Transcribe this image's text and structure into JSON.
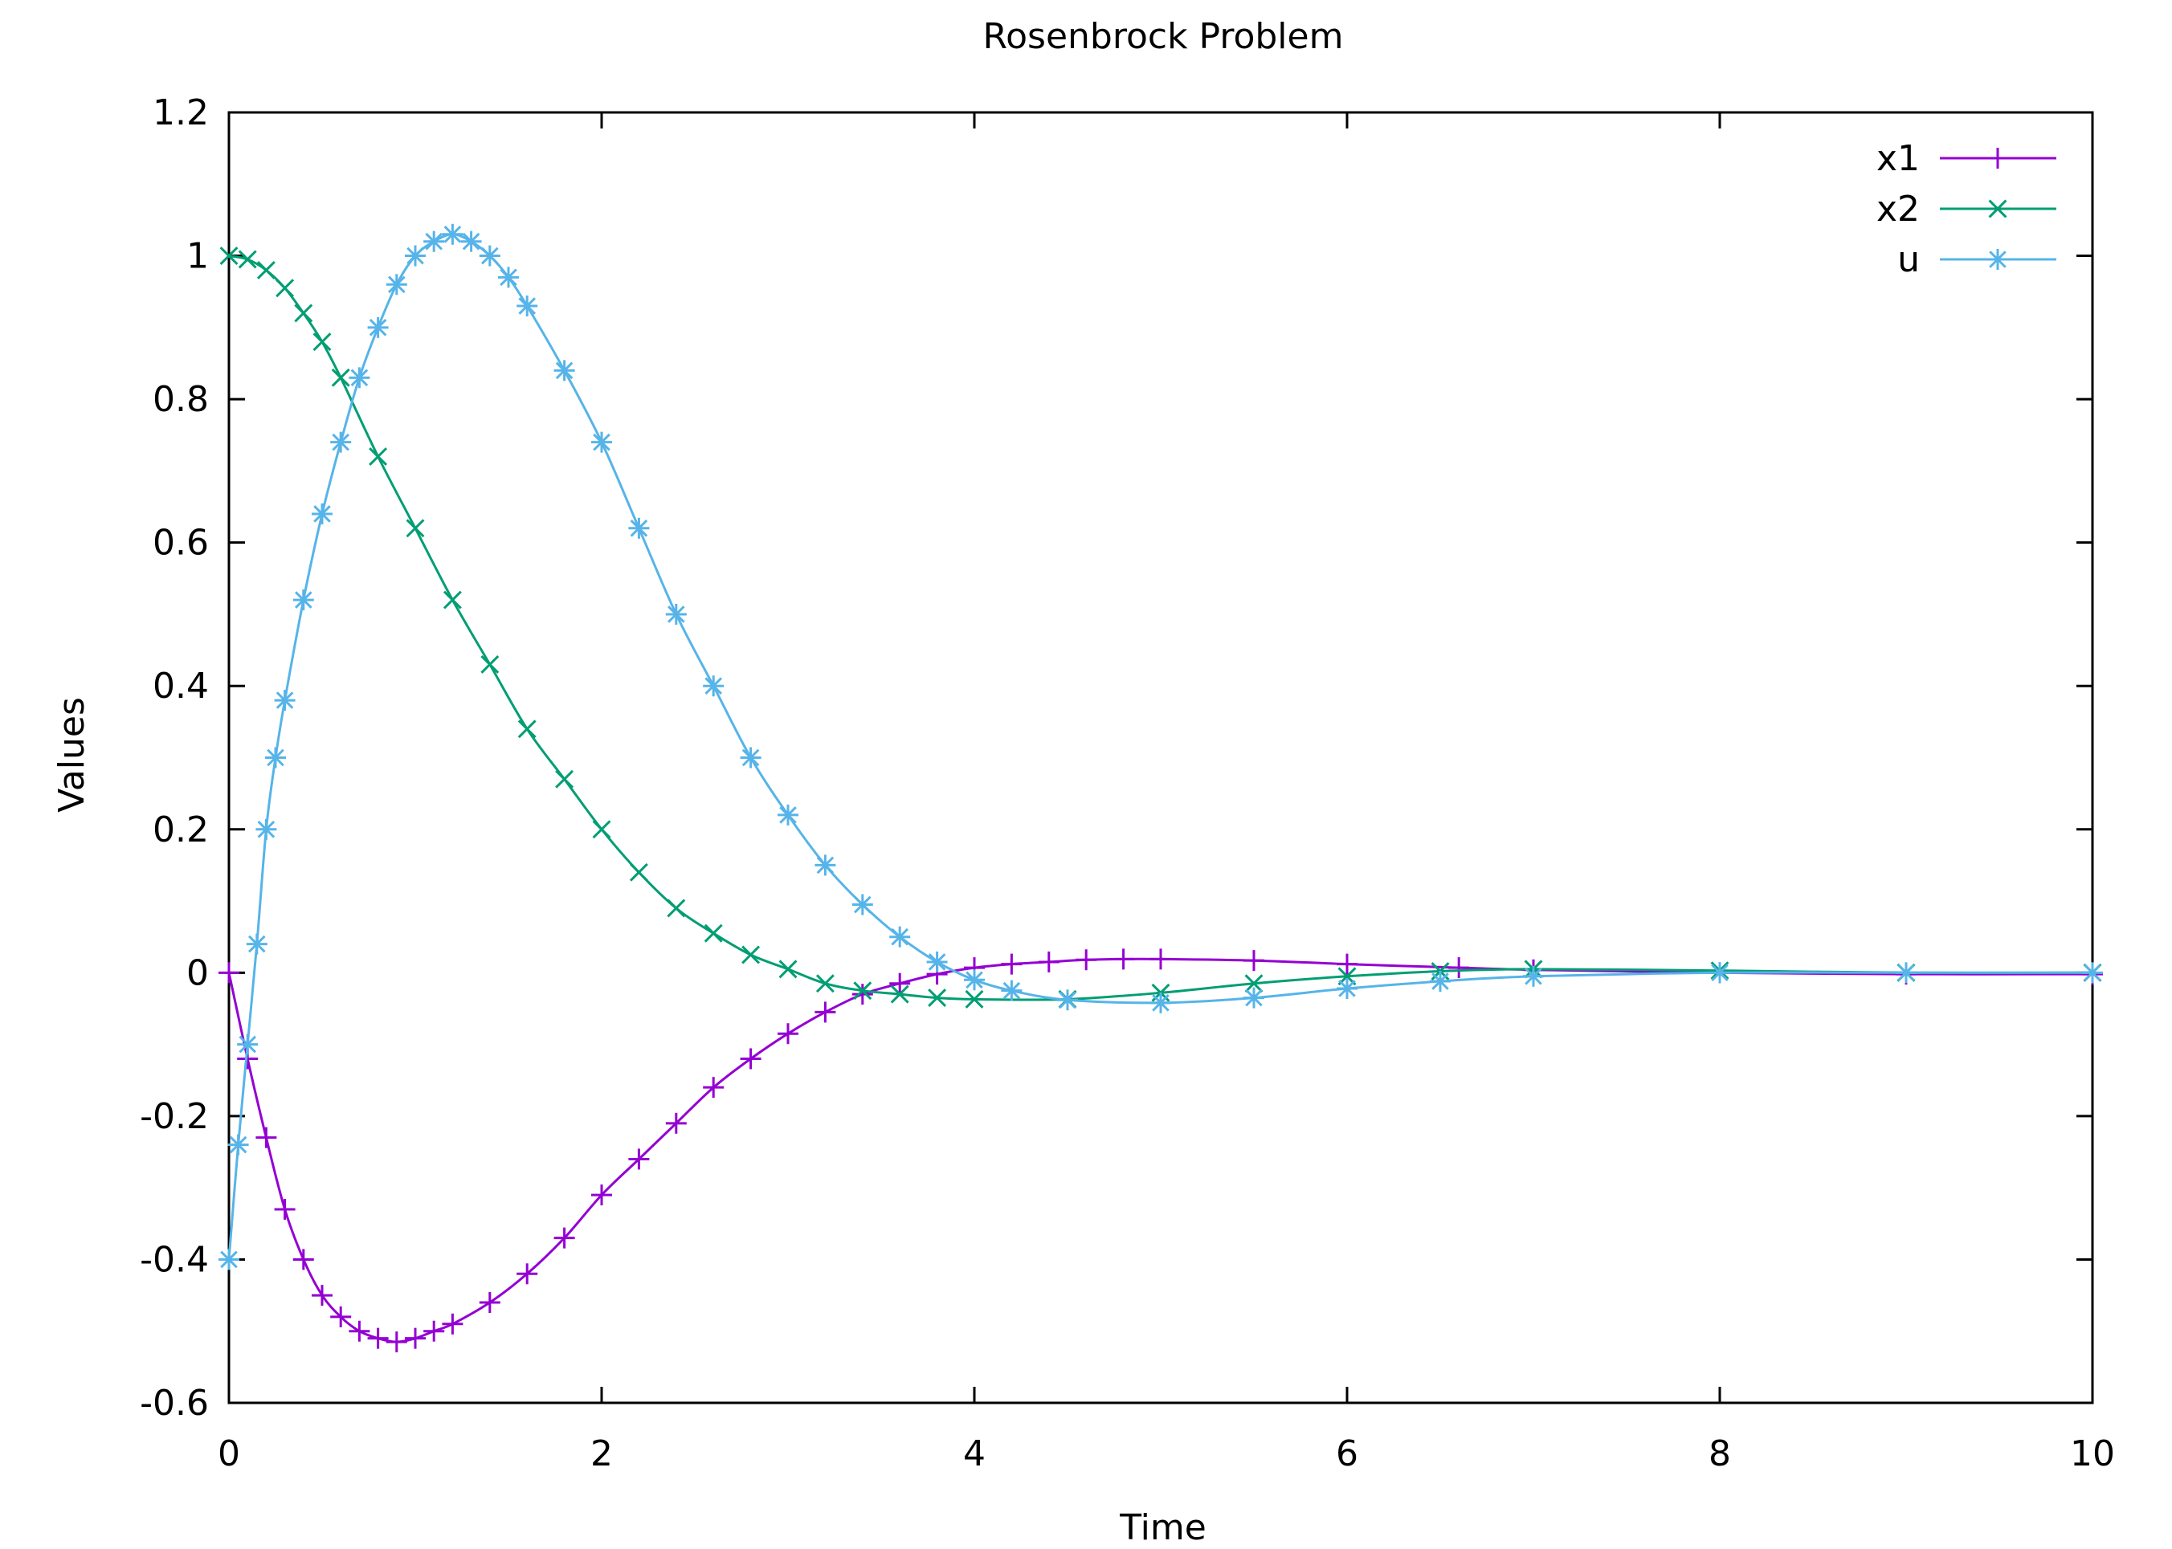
{
  "chart_data": {
    "type": "line",
    "title": "Rosenbrock Problem",
    "xlabel": "Time",
    "ylabel": "Values",
    "xlim": [
      0,
      10
    ],
    "ylim": [
      -0.6,
      1.2
    ],
    "x_ticks": [
      "0",
      "2",
      "4",
      "6",
      "8",
      "10"
    ],
    "y_ticks": [
      "-0.6",
      "-0.4",
      "-0.2",
      "0",
      "0.2",
      "0.4",
      "0.6",
      "0.8",
      "1",
      "1.2"
    ],
    "legend_position": "top-right",
    "grid": false,
    "series": [
      {
        "name": "x1",
        "color": "#9400d3",
        "marker": "plus",
        "x": [
          0,
          0.1,
          0.2,
          0.3,
          0.4,
          0.5,
          0.6,
          0.7,
          0.8,
          0.9,
          1.0,
          1.1,
          1.2,
          1.4,
          1.6,
          1.8,
          2.0,
          2.2,
          2.4,
          2.6,
          2.8,
          3.0,
          3.2,
          3.4,
          3.6,
          3.8,
          4.0,
          4.2,
          4.4,
          4.6,
          4.8,
          5.0,
          5.5,
          6.0,
          6.6,
          7.0,
          8.0,
          9.0,
          10.0
        ],
        "y": [
          0.0,
          -0.12,
          -0.23,
          -0.33,
          -0.4,
          -0.45,
          -0.48,
          -0.5,
          -0.51,
          -0.515,
          -0.51,
          -0.5,
          -0.49,
          -0.46,
          -0.42,
          -0.37,
          -0.31,
          -0.26,
          -0.21,
          -0.16,
          -0.12,
          -0.085,
          -0.055,
          -0.03,
          -0.015,
          -0.002,
          0.007,
          0.012,
          0.015,
          0.018,
          0.019,
          0.019,
          0.017,
          0.012,
          0.007,
          0.004,
          0.0,
          -0.002,
          -0.002
        ]
      },
      {
        "name": "x2",
        "color": "#009e73",
        "marker": "cross",
        "x": [
          0,
          0.1,
          0.2,
          0.3,
          0.4,
          0.5,
          0.6,
          0.8,
          1.0,
          1.2,
          1.4,
          1.6,
          1.8,
          2.0,
          2.2,
          2.4,
          2.6,
          2.8,
          3.0,
          3.2,
          3.4,
          3.6,
          3.8,
          4.0,
          4.5,
          5.0,
          5.5,
          6.0,
          6.5,
          7.0,
          8.0,
          9.0,
          10.0
        ],
        "y": [
          1.0,
          0.995,
          0.98,
          0.955,
          0.92,
          0.88,
          0.83,
          0.72,
          0.62,
          0.52,
          0.43,
          0.34,
          0.27,
          0.2,
          0.14,
          0.09,
          0.055,
          0.025,
          0.005,
          -0.015,
          -0.025,
          -0.03,
          -0.035,
          -0.037,
          -0.037,
          -0.028,
          -0.015,
          -0.005,
          0.002,
          0.005,
          0.003,
          0.0,
          0.0
        ]
      },
      {
        "name": "u",
        "color": "#56b4e9",
        "marker": "star",
        "x": [
          0,
          0.05,
          0.1,
          0.15,
          0.2,
          0.25,
          0.3,
          0.4,
          0.5,
          0.6,
          0.7,
          0.8,
          0.9,
          1.0,
          1.1,
          1.2,
          1.3,
          1.4,
          1.5,
          1.6,
          1.8,
          2.0,
          2.2,
          2.4,
          2.6,
          2.8,
          3.0,
          3.2,
          3.4,
          3.6,
          3.8,
          4.0,
          4.2,
          4.5,
          5.0,
          5.5,
          6.0,
          6.5,
          7.0,
          8.0,
          9.0,
          10.0
        ],
        "y": [
          -0.4,
          -0.24,
          -0.1,
          0.04,
          0.2,
          0.3,
          0.38,
          0.52,
          0.64,
          0.74,
          0.83,
          0.9,
          0.96,
          1.0,
          1.02,
          1.03,
          1.02,
          1.0,
          0.97,
          0.93,
          0.84,
          0.74,
          0.62,
          0.5,
          0.4,
          0.3,
          0.22,
          0.15,
          0.095,
          0.05,
          0.015,
          -0.01,
          -0.025,
          -0.038,
          -0.042,
          -0.035,
          -0.022,
          -0.012,
          -0.005,
          0.0,
          0.0,
          0.0
        ]
      }
    ]
  }
}
